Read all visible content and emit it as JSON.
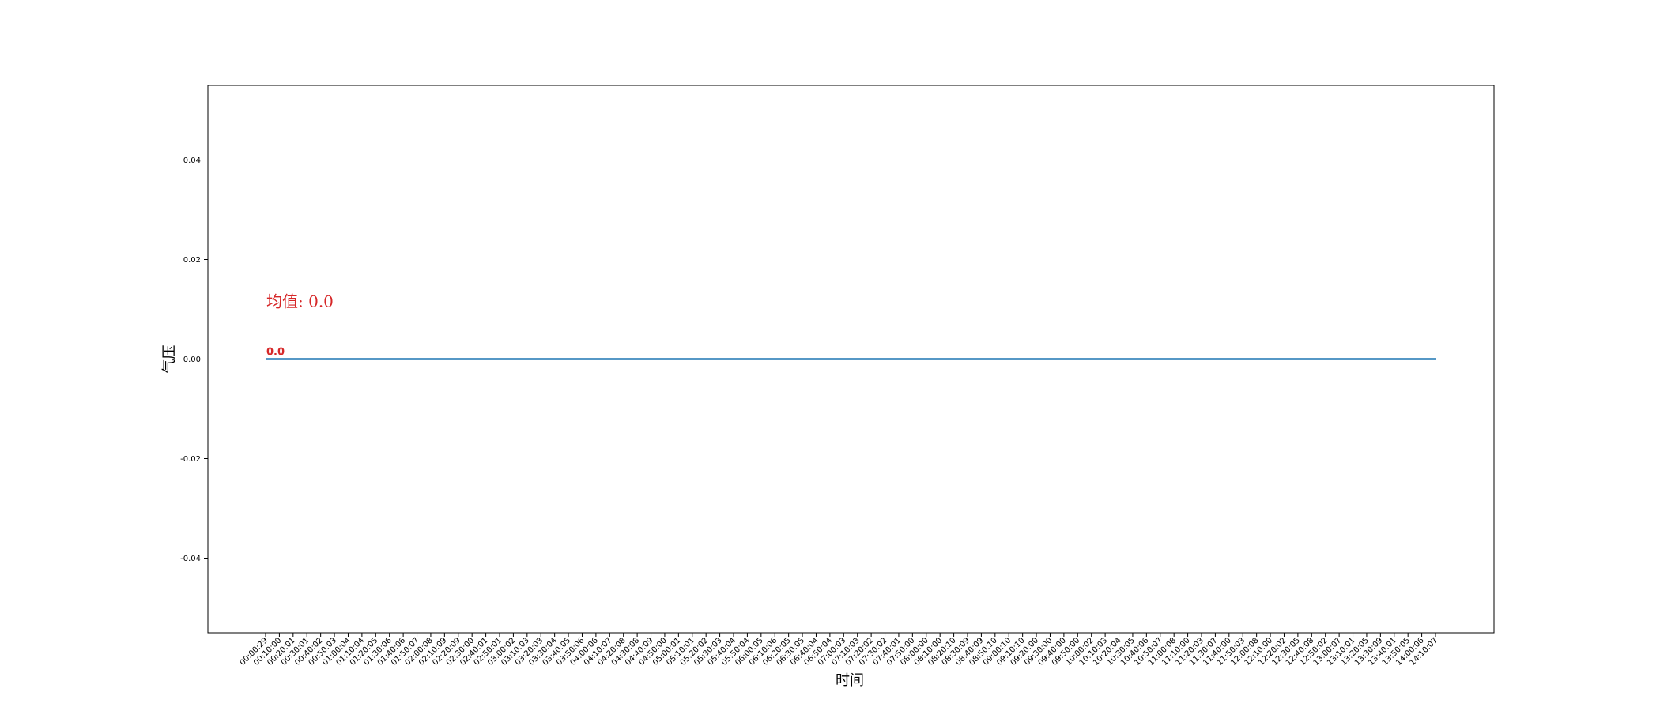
{
  "chart_data": {
    "type": "line",
    "xlabel": "时间",
    "ylabel": "气压",
    "ylim": [
      -0.055,
      0.055
    ],
    "yticks": [
      "-0.04",
      "-0.02",
      "0.00",
      "0.02",
      "0.04"
    ],
    "ytick_values": [
      -0.04,
      -0.02,
      0.0,
      0.02,
      0.04
    ],
    "categories": [
      "00:00:29",
      "00:10:00",
      "00:20:01",
      "00:30:01",
      "00:40:02",
      "00:50:03",
      "01:00:04",
      "01:10:04",
      "01:20:05",
      "01:30:06",
      "01:40:06",
      "01:50:07",
      "02:00:08",
      "02:10:09",
      "02:20:09",
      "02:30:00",
      "02:40:01",
      "02:50:01",
      "03:00:02",
      "03:10:03",
      "03:20:03",
      "03:30:04",
      "03:40:05",
      "03:50:06",
      "04:00:06",
      "04:10:07",
      "04:20:08",
      "04:30:08",
      "04:40:09",
      "04:50:00",
      "05:00:01",
      "05:10:01",
      "05:20:02",
      "05:30:03",
      "05:40:04",
      "05:50:04",
      "06:00:05",
      "06:10:06",
      "06:20:05",
      "06:30:05",
      "06:40:04",
      "06:50:04",
      "07:00:03",
      "07:10:03",
      "07:20:02",
      "07:30:02",
      "07:40:01",
      "07:50:00",
      "08:00:00",
      "08:10:00",
      "08:20:10",
      "08:30:09",
      "08:40:09",
      "08:50:10",
      "09:00:10",
      "09:10:10",
      "09:20:00",
      "09:30:00",
      "09:40:00",
      "09:50:00",
      "10:00:02",
      "10:10:03",
      "10:20:04",
      "10:30:05",
      "10:40:06",
      "10:50:07",
      "11:00:08",
      "11:10:00",
      "11:20:03",
      "11:30:07",
      "11:40:00",
      "11:50:03",
      "12:00:08",
      "12:10:00",
      "12:20:02",
      "12:30:05",
      "12:40:08",
      "12:50:02",
      "13:00:07",
      "13:10:01",
      "13:20:05",
      "13:30:09",
      "13:40:01",
      "13:50:05",
      "14:00:06",
      "14:10:07"
    ],
    "series": [
      {
        "values": "constant",
        "constant_value": 0.0,
        "color": "#1f77b4"
      }
    ],
    "annotations": {
      "mean_text": "均值: 0.0",
      "first_point_label": "0.0",
      "color": "#d62728"
    },
    "grid": false,
    "legend": "none"
  }
}
